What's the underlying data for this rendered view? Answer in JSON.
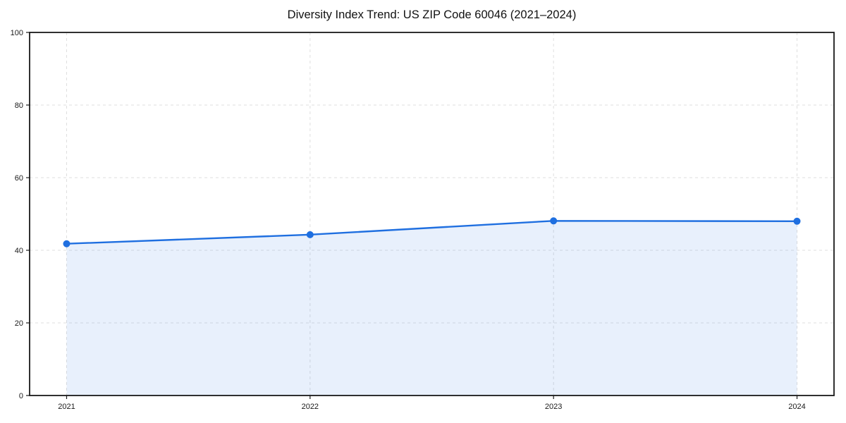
{
  "chart_data": {
    "type": "line",
    "title": "Diversity Index Trend: US ZIP Code 60046 (2021–2024)",
    "categories": [
      "2021",
      "2022",
      "2023",
      "2024"
    ],
    "series": [
      {
        "name": "Diversity Index",
        "values": [
          41.8,
          44.3,
          48.1,
          48.0
        ]
      }
    ],
    "xlabel": "",
    "ylabel": "",
    "ylim": [
      0,
      100
    ],
    "yticks": [
      0,
      20,
      40,
      60,
      80,
      100
    ],
    "grid": "dashed",
    "legend_position": "none",
    "area_fill": true,
    "fill_opacity": 0.1,
    "marker": "circle",
    "colors": {
      "line": "#1f6fe0",
      "marker": "#1f6fe0",
      "grid": "#dfdfdf",
      "axis": "#1a1a1a",
      "tick_label": "#1a1a1a",
      "title": "#111111",
      "background": "#ffffff"
    }
  }
}
